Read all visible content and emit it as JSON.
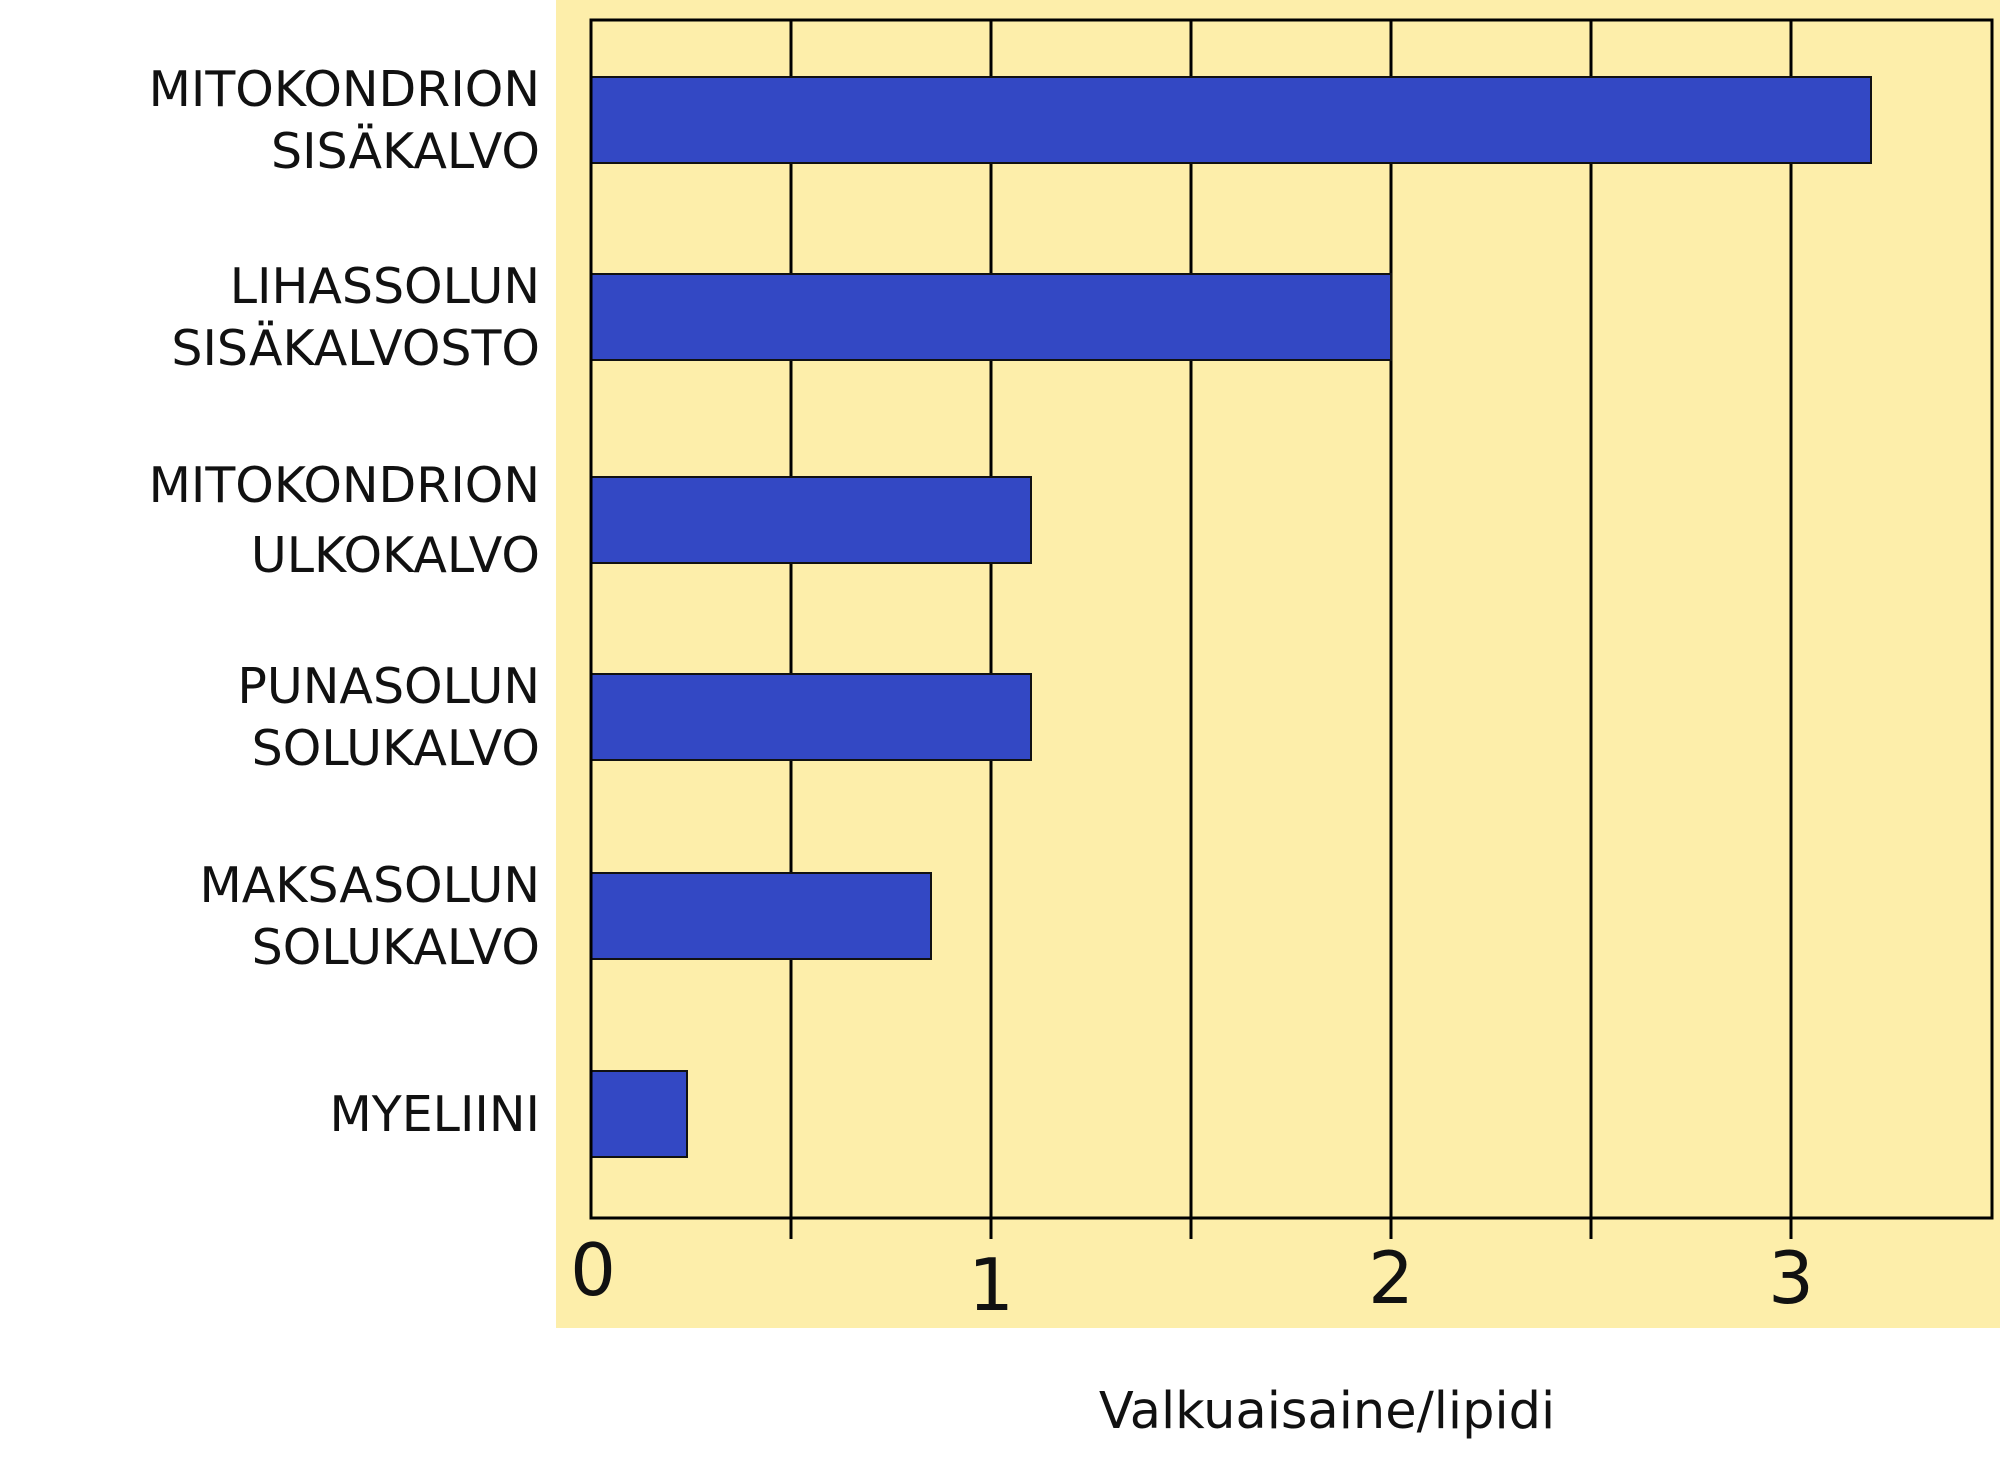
{
  "chart_data": {
    "type": "bar",
    "orientation": "horizontal",
    "categories": [
      [
        "MITOKONDRION",
        "SISÄKALVO"
      ],
      [
        "LIHASSOLUN",
        "SISÄKALVOSTO"
      ],
      [
        "MITOKONDRION",
        "ULKOKALVO"
      ],
      [
        "PUNASOLUN",
        "SOLUKALVO"
      ],
      [
        "MAKSASOLUN",
        "SOLUKALVO"
      ],
      [
        "MYELIINI"
      ]
    ],
    "values": [
      3.2,
      2.0,
      1.1,
      1.1,
      0.85,
      0.24
    ],
    "xlabel": "Valkuaisaine/lipidi",
    "xlim": [
      0,
      3.5
    ],
    "xticks": [
      0,
      1,
      2,
      3
    ],
    "grid": true,
    "colors": {
      "background": "#fdeeaa",
      "bar": "#3348c4",
      "line": "#000000"
    }
  }
}
